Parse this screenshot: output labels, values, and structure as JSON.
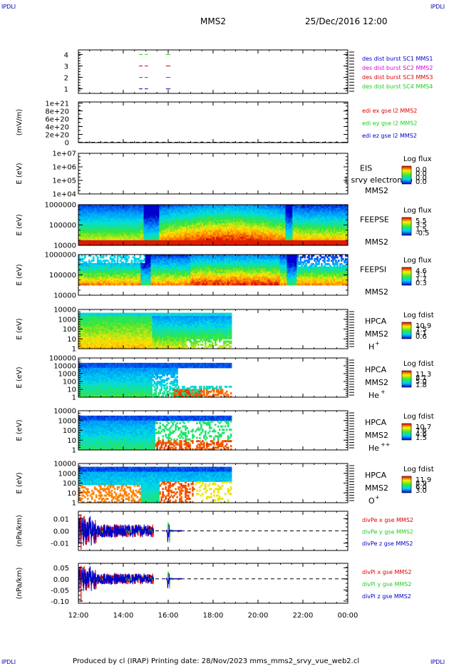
{
  "header": {
    "corner_mark": "IPDLI",
    "spacecraft": "MMS2",
    "datetime": "25/Dec/2016 12:00"
  },
  "footer": {
    "text": "Produced by cl (IRAP)   Printing date: 28/Nov/2023   mms_mms2_srvy_vue_web2.cl"
  },
  "time_axis": {
    "ticks": [
      "12:00",
      "14:00",
      "16:00",
      "18:00",
      "20:00",
      "22:00",
      "00:00"
    ],
    "hours": [
      12,
      14,
      16,
      18,
      20,
      22,
      24
    ],
    "range": [
      12,
      24
    ]
  },
  "colors": {
    "red": "#dd0000",
    "green": "#22cc22",
    "blue": "#0000cc",
    "magenta": "#dd00dd"
  },
  "chart_data": [
    {
      "id": "burst",
      "type": "scatter",
      "yticks": [
        "4",
        "3",
        "2",
        "1"
      ],
      "yvalues": [
        4,
        3,
        2,
        1
      ],
      "ylim": [
        0.6,
        4.4
      ],
      "legend": [
        {
          "label": "des dist burst SC1 MMS1",
          "color": "#0000cc"
        },
        {
          "label": "des dist burst SC2 MMS2",
          "color": "#dd00dd"
        },
        {
          "label": "des dist burst SC3 MMS3",
          "color": "#dd0000"
        },
        {
          "label": "des dist burst SC4 MMS4",
          "color": "#22cc22"
        }
      ],
      "series": [
        {
          "name": "des dist burst SC4 MMS4",
          "y": 4,
          "color": "#22cc22",
          "segments": [
            [
              14.7,
              15.1
            ],
            [
              15.9,
              16.1
            ]
          ]
        },
        {
          "name": "des dist burst SC3 MMS3",
          "y": 3,
          "color": "#dd0000",
          "segments": [
            [
              14.7,
              15.1
            ],
            [
              15.9,
              16.1
            ]
          ]
        },
        {
          "name": "des dist burst SC2 MMS2",
          "y": 2,
          "color": "#dd00dd",
          "segments": [
            [
              14.7,
              15.1
            ],
            [
              15.9,
              16.1
            ]
          ]
        },
        {
          "name": "des dist burst SC1 MMS1",
          "y": 1,
          "color": "#0000cc",
          "segments": [
            [
              14.7,
              15.1
            ],
            [
              15.9,
              16.1
            ]
          ]
        }
      ]
    },
    {
      "id": "edi",
      "type": "line",
      "ylabel": "(mV/m)",
      "yticks": [
        "1e+21",
        "8e+20",
        "6e+20",
        "4e+20",
        "2e+20",
        "0"
      ],
      "yvalues": [
        1e+21,
        8e+20,
        6e+20,
        4e+20,
        2e+20,
        0
      ],
      "ylim": [
        -1e+19,
        1.03e+21
      ],
      "legend": [
        {
          "label": "edi ex gse l2 MMS2",
          "color": "#dd0000"
        },
        {
          "label": "edi ey gse l2 MMS2",
          "color": "#22cc22"
        },
        {
          "label": "edi ez gse l2 MMS2",
          "color": "#0000cc"
        }
      ],
      "zero_line": true
    },
    {
      "id": "eis",
      "type": "heatmap",
      "ylabel": "E (eV)",
      "yticks": [
        "1e+07",
        "1e+06",
        "1e+05",
        "1e+04"
      ],
      "ylog": [
        4,
        7
      ],
      "instrument": "EIS",
      "mission": "MMS2",
      "overlay_text": "1 srvy electron to",
      "colorbar": {
        "title": "Log flux",
        "ticks": [
          "0.0",
          "0.0",
          "0.0",
          "0.0"
        ]
      }
    },
    {
      "id": "feepse",
      "type": "heatmap",
      "ylabel": "E (eV)",
      "yticks": [
        "1000000",
        "100000",
        "10000"
      ],
      "ylog": [
        4,
        6
      ],
      "instrument": "FEEPSE",
      "mission": "MMS2",
      "colorbar": {
        "title": "Log flux",
        "ticks": [
          "5.5",
          "3.5",
          "1.5",
          "-0.5"
        ]
      }
    },
    {
      "id": "feepsi",
      "type": "heatmap",
      "ylabel": "E (eV)",
      "yticks": [
        "1000000",
        "100000",
        "10000"
      ],
      "ylog": [
        4,
        6
      ],
      "instrument": "FEEPSI",
      "mission": "MMS2",
      "colorbar": {
        "title": "Log flux",
        "ticks": [
          "4.6",
          "3.1",
          "1.7",
          "0.3"
        ]
      }
    },
    {
      "id": "hpca_h",
      "type": "heatmap",
      "ylabel": "E (eV)",
      "yticks": [
        "10000",
        "1000",
        "100",
        "10",
        "1"
      ],
      "ylog": [
        0,
        4.5
      ],
      "instrument": "HPCA",
      "mission": "MMS2",
      "species": "H",
      "charge": "+",
      "colorbar": {
        "title": "Log fdist",
        "ticks": [
          "10.9",
          "7.5",
          "4.1",
          "0.6"
        ]
      }
    },
    {
      "id": "hpca_he",
      "type": "heatmap",
      "ylabel": "E (eV)",
      "yticks": [
        "100000",
        "10000",
        "1000",
        "100",
        "10",
        "1"
      ],
      "ylog": [
        0,
        5
      ],
      "instrument": "HPCA",
      "mission": "MMS2",
      "species": "He",
      "charge": "+",
      "colorbar": {
        "title": "Log fdist",
        "ticks": [
          "11.3",
          "8.1",
          "5.0",
          "1.8"
        ]
      }
    },
    {
      "id": "hpca_hepp",
      "type": "heatmap",
      "ylabel": "E (eV)",
      "yticks": [
        "10000",
        "1000",
        "100",
        "10",
        "1"
      ],
      "ylog": [
        0,
        4.5
      ],
      "instrument": "HPCA",
      "mission": "MMS2",
      "species": "He",
      "charge": "++",
      "colorbar": {
        "title": "Log fdist",
        "ticks": [
          "10.7",
          "7.6",
          "4.6",
          "1.5"
        ]
      }
    },
    {
      "id": "hpca_o",
      "type": "heatmap",
      "ylabel": "E (eV)",
      "yticks": [
        "10000",
        "1000",
        "100",
        "10",
        "1"
      ],
      "ylog": [
        0,
        4.5
      ],
      "instrument": "HPCA",
      "mission": "MMS2",
      "species": "O",
      "charge": "+",
      "colorbar": {
        "title": "Log fdist",
        "ticks": [
          "11.9",
          "8.9",
          "6.0",
          "3.0"
        ]
      }
    },
    {
      "id": "divpe",
      "type": "line",
      "ylabel": "(nPa/km)",
      "yticks": [
        "0.01",
        "0.00",
        "-0.01"
      ],
      "yvalues": [
        0.01,
        0,
        -0.01
      ],
      "ylim": [
        -0.016,
        0.016
      ],
      "legend": [
        {
          "label": "divPe x gse MMS2",
          "color": "#dd0000"
        },
        {
          "label": "divPe y gse MMS2",
          "color": "#22cc22"
        },
        {
          "label": "divPe z gse MMS2",
          "color": "#0000cc"
        }
      ],
      "zero_line": true
    },
    {
      "id": "divpi",
      "type": "line",
      "ylabel": "(nPa/km)",
      "yticks": [
        "0.05",
        "0.00",
        "-0.05",
        "-0.10"
      ],
      "yvalues": [
        0.05,
        0,
        -0.05,
        -0.1
      ],
      "ylim": [
        -0.11,
        0.07
      ],
      "legend": [
        {
          "label": "divPi x gse MMS2",
          "color": "#dd0000"
        },
        {
          "label": "divPi y gse MMS2",
          "color": "#22cc22"
        },
        {
          "label": "divPi z gse MMS2",
          "color": "#0000cc"
        }
      ],
      "zero_line": true
    }
  ]
}
